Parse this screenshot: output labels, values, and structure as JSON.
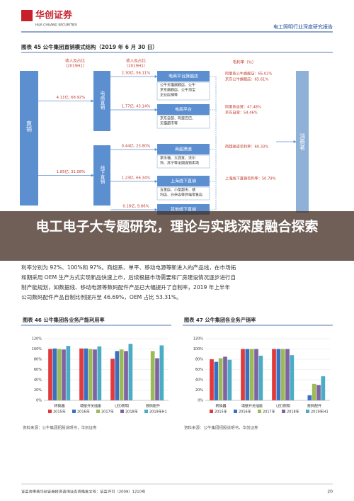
{
  "header": {
    "logo": "华创证券",
    "logo_en": "HUA CHUANG SECURITIES",
    "report": "电工照明行业深度研究报告"
  },
  "figure45": {
    "title": "图表 45  公牛集团直销模式结构（2019 年 6 月 30 日）",
    "left_label": [
      "收入及占比",
      "（2019H1）"
    ],
    "mid_label": [
      "收入及占比",
      "（2019H1）"
    ],
    "margin_label": "毛利率（%）",
    "root": "直销",
    "consumer": "消费者",
    "channels": [
      {
        "name": "电商直销",
        "share": "4.11亿, 68.92%"
      },
      {
        "name": "线下直销",
        "share": "1.85亿, 31.08%"
      }
    ],
    "sub": [
      {
        "name": "电商平台旗舰店",
        "share": "2.30亿, 56.11%",
        "desc": [
          "公牛天猫旗舰店、公牛",
          "京东旗舰店、公牛淘宝",
          "企业店铺等"
        ],
        "margin": [
          "阿里系公牛旗舰店：65.02%",
          "京东公牛旗舰店：65.61%"
        ]
      },
      {
        "name": "电商平台",
        "share": "1.77亿, 43.14%",
        "desc": [
          "京东自营、阿里巴巴、",
          "天猫超市等"
        ],
        "margin": [
          "阿里系自营：47.48%",
          "京东自营：54.46%"
        ]
      },
      {
        "name": "商超渠道",
        "share": "0.44亿, 23.80%",
        "desc": [
          "家乐福、大润发、沃尔",
          "玛、苏宁等全国连锁卖场"
        ],
        "margin": [
          "商超渠道毛利率：60.33%"
        ]
      },
      {
        "name": "上海线下直销",
        "share": "1.23亿, 66.34%",
        "desc": [
          "五金店、小型超市、便",
          "利店、日杂店等终端零售店"
        ],
        "margin": [
          "上海线下直销毛利率：50.79%"
        ]
      },
      {
        "name": "其他线下直销",
        "share": "0.18亿, 9.86%"
      }
    ]
  },
  "banner": {
    "text": "电工电子大专题研究，理论与实践深度融合探索"
  },
  "body": {
    "lines": [
      "利率分别为 92%、100%和 97%。商超系、单平、移动电源等新进入的产品线，在市场拓",
      "和期采用 OEM 生产方式实现新品快速上市，后续根据市场需要和厂房建设情况逐步进行自",
      "制产能规划，如数据线、移动电源等数码配件产品已大幅提升了自制率，2019 年上半年",
      "公司数码配件产品自制比例提升至 46.69%，OEM 占比 53.31%。"
    ]
  },
  "chart_data": [
    {
      "type": "bar",
      "title": "图表 46  公牛集团各业务产能利用率",
      "source": "资料来源：公牛集团招股说明书，华创证券",
      "categories": [
        "转换器",
        "墙壁开关插座",
        "LED照明",
        "数码配件"
      ],
      "series": [
        {
          "name": "2015年",
          "color": "#e03a3a",
          "values": [
            100,
            101,
            81,
            null
          ]
        },
        {
          "name": "2016年",
          "color": "#3a6fc4",
          "values": [
            101,
            101,
            96,
            null
          ]
        },
        {
          "name": "2017年",
          "color": "#9bbb59",
          "values": [
            100,
            100,
            99,
            96
          ]
        },
        {
          "name": "2018年",
          "color": "#8064a2",
          "values": [
            99,
            99,
            96,
            82
          ]
        },
        {
          "name": "2019年H1",
          "color": "#4bacc6",
          "values": [
            106,
            105,
            110,
            107
          ]
        }
      ],
      "ylim": [
        0,
        120
      ],
      "yticks": [
        {
          "value": 0,
          "label": "0%"
        },
        {
          "value": 20,
          "label": "20%"
        },
        {
          "value": 40,
          "label": "40%"
        },
        {
          "value": 60,
          "label": "60%"
        },
        {
          "value": 80,
          "label": "80%"
        },
        {
          "value": 100,
          "label": "100%"
        },
        {
          "value": 120,
          "label": "120%"
        }
      ]
    },
    {
      "type": "bar",
      "title": "图表 47  公牛集团各业务产销率",
      "source": "资料来源：公牛集团招股说明书，华创证券",
      "categories": [
        "转换器",
        "墙壁开关插座",
        "LED照明",
        "数码配件"
      ],
      "series": [
        {
          "name": "2015年",
          "color": "#e03a3a",
          "values": [
            80,
            100,
            100,
            null
          ]
        },
        {
          "name": "2016年",
          "color": "#3a6fc4",
          "values": [
            75,
            100,
            100,
            10
          ]
        },
        {
          "name": "2017年",
          "color": "#9bbb59",
          "values": [
            82,
            100,
            100,
            32
          ]
        },
        {
          "name": "2018年",
          "color": "#8064a2",
          "values": [
            85,
            100,
            100,
            30
          ]
        },
        {
          "name": "2019年H1",
          "color": "#4bacc6",
          "values": [
            79,
            87,
            88,
            47
          ]
        }
      ],
      "ylim": [
        0,
        120
      ],
      "yticks": [
        {
          "value": 0,
          "label": "0%"
        },
        {
          "value": 20,
          "label": "20%"
        },
        {
          "value": 40,
          "label": "40%"
        },
        {
          "value": 60,
          "label": "60%"
        },
        {
          "value": 80,
          "label": "80%"
        },
        {
          "value": 100,
          "label": "100%"
        },
        {
          "value": 120,
          "label": "120%"
        }
      ]
    }
  ],
  "footer": {
    "note": "证监会审核华创证券投资咨询业务资格批文号：证监许可（2009）1210号",
    "page": "20"
  }
}
